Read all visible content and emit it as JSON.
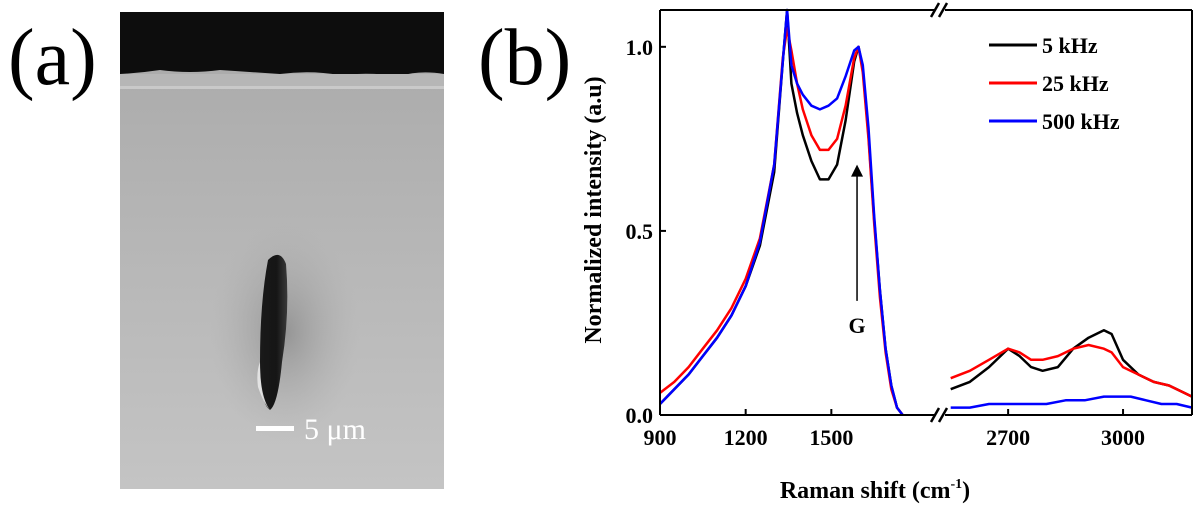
{
  "panel_labels": {
    "a": "(a)",
    "b": "(b)"
  },
  "micrograph": {
    "scale_bar_label": "5 μm"
  },
  "chart_data": {
    "type": "line",
    "xlabel": "Raman shift (cm",
    "xlabel_superscript": "-1",
    "xlabel_suffix": ")",
    "ylabel": "Normalized intensity (a.u)",
    "broken_x_axis": true,
    "x_segments": [
      {
        "xlim": [
          900,
          1870
        ],
        "ticks": [
          900,
          1200,
          1500
        ]
      },
      {
        "xlim": [
          2530,
          3180
        ],
        "ticks": [
          2700,
          3000
        ]
      }
    ],
    "ylim": [
      0,
      1.1
    ],
    "yticks": [
      {
        "value": 0.0,
        "label": "0.0"
      },
      {
        "value": 0.5,
        "label": "0.5"
      },
      {
        "value": 1.0,
        "label": "1.0"
      }
    ],
    "grid": false,
    "legend_position": "top-right",
    "annotation": {
      "label": "G",
      "x": 1590,
      "y_from": 0.31,
      "y_to": 0.68
    },
    "series": [
      {
        "name": "5 kHz",
        "color": "#000000",
        "segments": [
          [
            [
              900,
              0.03
            ],
            [
              950,
              0.07
            ],
            [
              1000,
              0.11
            ],
            [
              1050,
              0.16
            ],
            [
              1100,
              0.21
            ],
            [
              1150,
              0.27
            ],
            [
              1200,
              0.35
            ],
            [
              1250,
              0.46
            ],
            [
              1300,
              0.66
            ],
            [
              1330,
              0.96
            ],
            [
              1345,
              1.1
            ],
            [
              1360,
              0.9
            ],
            [
              1380,
              0.82
            ],
            [
              1400,
              0.76
            ],
            [
              1430,
              0.69
            ],
            [
              1460,
              0.64
            ],
            [
              1490,
              0.64
            ],
            [
              1520,
              0.68
            ],
            [
              1550,
              0.8
            ],
            [
              1580,
              0.96
            ],
            [
              1595,
              1.0
            ],
            [
              1610,
              0.94
            ],
            [
              1630,
              0.76
            ],
            [
              1650,
              0.53
            ],
            [
              1670,
              0.34
            ],
            [
              1690,
              0.18
            ],
            [
              1710,
              0.08
            ],
            [
              1730,
              0.02
            ],
            [
              1750,
              0.0
            ]
          ],
          [
            [
              2550,
              0.07
            ],
            [
              2600,
              0.09
            ],
            [
              2650,
              0.13
            ],
            [
              2700,
              0.18
            ],
            [
              2730,
              0.16
            ],
            [
              2760,
              0.13
            ],
            [
              2790,
              0.12
            ],
            [
              2830,
              0.13
            ],
            [
              2870,
              0.18
            ],
            [
              2910,
              0.21
            ],
            [
              2950,
              0.23
            ],
            [
              2970,
              0.22
            ],
            [
              3000,
              0.15
            ],
            [
              3040,
              0.11
            ],
            [
              3080,
              0.09
            ],
            [
              3120,
              0.08
            ],
            [
              3160,
              0.06
            ],
            [
              3180,
              0.05
            ]
          ]
        ]
      },
      {
        "name": "25 kHz",
        "color": "#ff0000",
        "segments": [
          [
            [
              900,
              0.06
            ],
            [
              950,
              0.09
            ],
            [
              1000,
              0.13
            ],
            [
              1050,
              0.18
            ],
            [
              1100,
              0.23
            ],
            [
              1150,
              0.29
            ],
            [
              1200,
              0.37
            ],
            [
              1250,
              0.48
            ],
            [
              1300,
              0.68
            ],
            [
              1330,
              0.97
            ],
            [
              1345,
              1.05
            ],
            [
              1360,
              0.99
            ],
            [
              1380,
              0.9
            ],
            [
              1400,
              0.83
            ],
            [
              1430,
              0.76
            ],
            [
              1460,
              0.72
            ],
            [
              1490,
              0.72
            ],
            [
              1520,
              0.75
            ],
            [
              1550,
              0.84
            ],
            [
              1580,
              0.97
            ],
            [
              1595,
              1.0
            ],
            [
              1610,
              0.93
            ],
            [
              1630,
              0.75
            ],
            [
              1650,
              0.52
            ],
            [
              1670,
              0.32
            ],
            [
              1690,
              0.17
            ],
            [
              1710,
              0.07
            ],
            [
              1730,
              0.02
            ],
            [
              1750,
              0.0
            ]
          ],
          [
            [
              2550,
              0.1
            ],
            [
              2600,
              0.12
            ],
            [
              2650,
              0.15
            ],
            [
              2700,
              0.18
            ],
            [
              2730,
              0.17
            ],
            [
              2760,
              0.15
            ],
            [
              2790,
              0.15
            ],
            [
              2830,
              0.16
            ],
            [
              2870,
              0.18
            ],
            [
              2910,
              0.19
            ],
            [
              2950,
              0.18
            ],
            [
              2970,
              0.17
            ],
            [
              3000,
              0.13
            ],
            [
              3040,
              0.11
            ],
            [
              3080,
              0.09
            ],
            [
              3120,
              0.08
            ],
            [
              3160,
              0.06
            ],
            [
              3180,
              0.05
            ]
          ]
        ]
      },
      {
        "name": "500 kHz",
        "color": "#0000ff",
        "segments": [
          [
            [
              900,
              0.03
            ],
            [
              950,
              0.07
            ],
            [
              1000,
              0.11
            ],
            [
              1050,
              0.16
            ],
            [
              1100,
              0.21
            ],
            [
              1150,
              0.27
            ],
            [
              1200,
              0.35
            ],
            [
              1250,
              0.47
            ],
            [
              1300,
              0.68
            ],
            [
              1330,
              0.96
            ],
            [
              1345,
              1.1
            ],
            [
              1360,
              0.95
            ],
            [
              1380,
              0.9
            ],
            [
              1400,
              0.87
            ],
            [
              1430,
              0.84
            ],
            [
              1460,
              0.83
            ],
            [
              1490,
              0.84
            ],
            [
              1520,
              0.86
            ],
            [
              1550,
              0.92
            ],
            [
              1580,
              0.99
            ],
            [
              1595,
              1.0
            ],
            [
              1610,
              0.95
            ],
            [
              1630,
              0.78
            ],
            [
              1650,
              0.54
            ],
            [
              1670,
              0.34
            ],
            [
              1690,
              0.18
            ],
            [
              1710,
              0.08
            ],
            [
              1730,
              0.02
            ],
            [
              1750,
              0.0
            ]
          ],
          [
            [
              2550,
              0.02
            ],
            [
              2600,
              0.02
            ],
            [
              2650,
              0.03
            ],
            [
              2700,
              0.03
            ],
            [
              2750,
              0.03
            ],
            [
              2800,
              0.03
            ],
            [
              2850,
              0.04
            ],
            [
              2900,
              0.04
            ],
            [
              2950,
              0.05
            ],
            [
              2980,
              0.05
            ],
            [
              3020,
              0.05
            ],
            [
              3060,
              0.04
            ],
            [
              3100,
              0.03
            ],
            [
              3140,
              0.03
            ],
            [
              3180,
              0.02
            ]
          ]
        ]
      }
    ]
  }
}
